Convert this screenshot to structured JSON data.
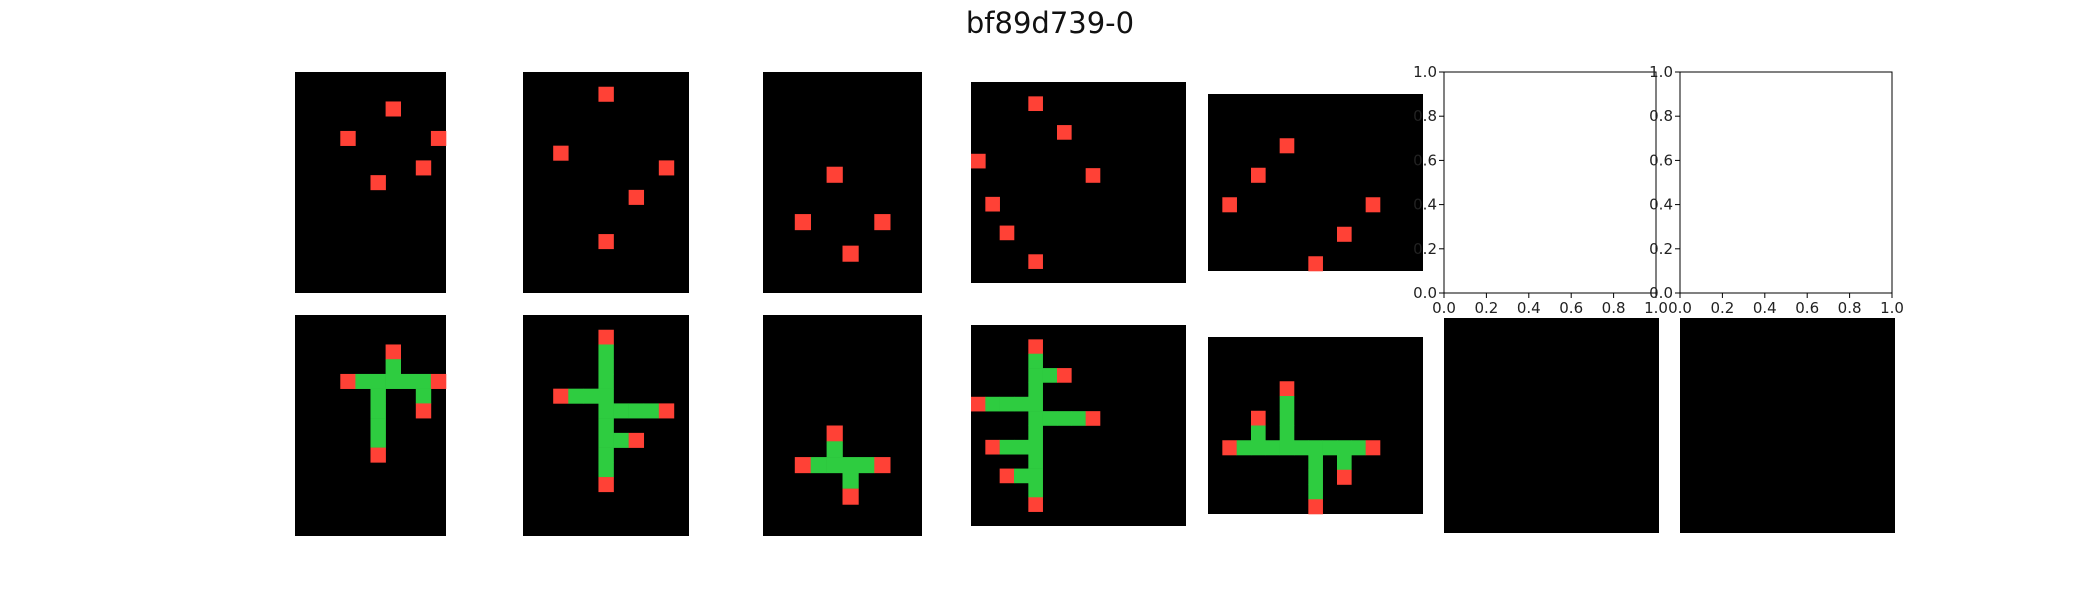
{
  "title": "bf89d739-0",
  "colors": {
    "background": "#000000",
    "red": "#ff4136",
    "green": "#2ecc40"
  },
  "panels": [
    {
      "id": "pair-1-input",
      "rows": 15,
      "cols": 10,
      "cells": [
        {
          "r": 2,
          "c": 6,
          "v": "red"
        },
        {
          "r": 4,
          "c": 3,
          "v": "red"
        },
        {
          "r": 4,
          "c": 9,
          "v": "red"
        },
        {
          "r": 6,
          "c": 8,
          "v": "red"
        },
        {
          "r": 7,
          "c": 5,
          "v": "red"
        }
      ]
    },
    {
      "id": "pair-2-input",
      "rows": 15,
      "cols": 11,
      "cells": [
        {
          "r": 1,
          "c": 5,
          "v": "red"
        },
        {
          "r": 5,
          "c": 2,
          "v": "red"
        },
        {
          "r": 6,
          "c": 9,
          "v": "red"
        },
        {
          "r": 8,
          "c": 7,
          "v": "red"
        },
        {
          "r": 11,
          "c": 5,
          "v": "red"
        }
      ]
    },
    {
      "id": "pair-3-input",
      "rows": 14,
      "cols": 10,
      "cells": [
        {
          "r": 6,
          "c": 4,
          "v": "red"
        },
        {
          "r": 9,
          "c": 2,
          "v": "red"
        },
        {
          "r": 9,
          "c": 7,
          "v": "red"
        },
        {
          "r": 11,
          "c": 5,
          "v": "red"
        }
      ]
    },
    {
      "id": "pair-4-input",
      "rows": 14,
      "cols": 15,
      "cells": [
        {
          "r": 1,
          "c": 4,
          "v": "red"
        },
        {
          "r": 3,
          "c": 6,
          "v": "red"
        },
        {
          "r": 5,
          "c": 0,
          "v": "red"
        },
        {
          "r": 6,
          "c": 8,
          "v": "red"
        },
        {
          "r": 8,
          "c": 1,
          "v": "red"
        },
        {
          "r": 10,
          "c": 2,
          "v": "red"
        },
        {
          "r": 12,
          "c": 4,
          "v": "red"
        }
      ]
    },
    {
      "id": "pair-5-input",
      "rows": 12,
      "cols": 15,
      "cells": [
        {
          "r": 3,
          "c": 5,
          "v": "red"
        },
        {
          "r": 5,
          "c": 3,
          "v": "red"
        },
        {
          "r": 7,
          "c": 1,
          "v": "red"
        },
        {
          "r": 7,
          "c": 11,
          "v": "red"
        },
        {
          "r": 9,
          "c": 9,
          "v": "red"
        },
        {
          "r": 11,
          "c": 7,
          "v": "red"
        }
      ]
    },
    {
      "id": "pair-1-output",
      "rows": 15,
      "cols": 10,
      "cells": [
        {
          "r": 2,
          "c": 6,
          "v": "red"
        },
        {
          "r": 3,
          "c": 6,
          "v": "green"
        },
        {
          "r": 4,
          "c": 3,
          "v": "red"
        },
        {
          "r": 4,
          "c": 4,
          "v": "green"
        },
        {
          "r": 4,
          "c": 5,
          "v": "green"
        },
        {
          "r": 4,
          "c": 6,
          "v": "green"
        },
        {
          "r": 4,
          "c": 7,
          "v": "green"
        },
        {
          "r": 4,
          "c": 8,
          "v": "green"
        },
        {
          "r": 4,
          "c": 9,
          "v": "red"
        },
        {
          "r": 5,
          "c": 5,
          "v": "green"
        },
        {
          "r": 5,
          "c": 8,
          "v": "green"
        },
        {
          "r": 6,
          "c": 5,
          "v": "green"
        },
        {
          "r": 6,
          "c": 8,
          "v": "red"
        },
        {
          "r": 7,
          "c": 5,
          "v": "green"
        },
        {
          "r": 8,
          "c": 5,
          "v": "green"
        },
        {
          "r": 9,
          "c": 5,
          "v": "red"
        }
      ]
    },
    {
      "id": "pair-2-output",
      "rows": 15,
      "cols": 11,
      "cells": [
        {
          "r": 1,
          "c": 5,
          "v": "red"
        },
        {
          "r": 2,
          "c": 5,
          "v": "green"
        },
        {
          "r": 3,
          "c": 5,
          "v": "green"
        },
        {
          "r": 4,
          "c": 5,
          "v": "green"
        },
        {
          "r": 5,
          "c": 2,
          "v": "red"
        },
        {
          "r": 5,
          "c": 3,
          "v": "green"
        },
        {
          "r": 5,
          "c": 4,
          "v": "green"
        },
        {
          "r": 5,
          "c": 5,
          "v": "green"
        },
        {
          "r": 6,
          "c": 5,
          "v": "green"
        },
        {
          "r": 6,
          "c": 6,
          "v": "green"
        },
        {
          "r": 6,
          "c": 7,
          "v": "green"
        },
        {
          "r": 6,
          "c": 8,
          "v": "green"
        },
        {
          "r": 6,
          "c": 9,
          "v": "red"
        },
        {
          "r": 7,
          "c": 5,
          "v": "green"
        },
        {
          "r": 8,
          "c": 5,
          "v": "green"
        },
        {
          "r": 8,
          "c": 6,
          "v": "green"
        },
        {
          "r": 8,
          "c": 7,
          "v": "red"
        },
        {
          "r": 9,
          "c": 5,
          "v": "green"
        },
        {
          "r": 10,
          "c": 5,
          "v": "green"
        },
        {
          "r": 11,
          "c": 5,
          "v": "red"
        }
      ]
    },
    {
      "id": "pair-3-output",
      "rows": 14,
      "cols": 10,
      "cells": [
        {
          "r": 7,
          "c": 4,
          "v": "red"
        },
        {
          "r": 8,
          "c": 4,
          "v": "green"
        },
        {
          "r": 9,
          "c": 2,
          "v": "red"
        },
        {
          "r": 9,
          "c": 3,
          "v": "green"
        },
        {
          "r": 9,
          "c": 4,
          "v": "green"
        },
        {
          "r": 9,
          "c": 5,
          "v": "green"
        },
        {
          "r": 9,
          "c": 6,
          "v": "green"
        },
        {
          "r": 9,
          "c": 7,
          "v": "red"
        },
        {
          "r": 10,
          "c": 5,
          "v": "green"
        },
        {
          "r": 11,
          "c": 5,
          "v": "red"
        }
      ]
    },
    {
      "id": "pair-4-output",
      "rows": 14,
      "cols": 15,
      "cells": [
        {
          "r": 1,
          "c": 4,
          "v": "red"
        },
        {
          "r": 2,
          "c": 4,
          "v": "green"
        },
        {
          "r": 3,
          "c": 4,
          "v": "green"
        },
        {
          "r": 3,
          "c": 5,
          "v": "green"
        },
        {
          "r": 3,
          "c": 6,
          "v": "red"
        },
        {
          "r": 4,
          "c": 4,
          "v": "green"
        },
        {
          "r": 5,
          "c": 0,
          "v": "red"
        },
        {
          "r": 5,
          "c": 1,
          "v": "green"
        },
        {
          "r": 5,
          "c": 2,
          "v": "green"
        },
        {
          "r": 5,
          "c": 3,
          "v": "green"
        },
        {
          "r": 5,
          "c": 4,
          "v": "green"
        },
        {
          "r": 6,
          "c": 4,
          "v": "green"
        },
        {
          "r": 6,
          "c": 5,
          "v": "green"
        },
        {
          "r": 6,
          "c": 6,
          "v": "green"
        },
        {
          "r": 6,
          "c": 7,
          "v": "green"
        },
        {
          "r": 6,
          "c": 8,
          "v": "red"
        },
        {
          "r": 7,
          "c": 4,
          "v": "green"
        },
        {
          "r": 8,
          "c": 1,
          "v": "red"
        },
        {
          "r": 8,
          "c": 2,
          "v": "green"
        },
        {
          "r": 8,
          "c": 3,
          "v": "green"
        },
        {
          "r": 8,
          "c": 4,
          "v": "green"
        },
        {
          "r": 9,
          "c": 4,
          "v": "green"
        },
        {
          "r": 10,
          "c": 2,
          "v": "red"
        },
        {
          "r": 10,
          "c": 3,
          "v": "green"
        },
        {
          "r": 10,
          "c": 4,
          "v": "green"
        },
        {
          "r": 11,
          "c": 4,
          "v": "green"
        },
        {
          "r": 12,
          "c": 4,
          "v": "red"
        }
      ]
    },
    {
      "id": "pair-5-output",
      "rows": 12,
      "cols": 15,
      "cells": [
        {
          "r": 3,
          "c": 5,
          "v": "red"
        },
        {
          "r": 4,
          "c": 5,
          "v": "green"
        },
        {
          "r": 5,
          "c": 3,
          "v": "red"
        },
        {
          "r": 5,
          "c": 5,
          "v": "green"
        },
        {
          "r": 6,
          "c": 3,
          "v": "green"
        },
        {
          "r": 6,
          "c": 5,
          "v": "green"
        },
        {
          "r": 7,
          "c": 1,
          "v": "red"
        },
        {
          "r": 7,
          "c": 2,
          "v": "green"
        },
        {
          "r": 7,
          "c": 3,
          "v": "green"
        },
        {
          "r": 7,
          "c": 4,
          "v": "green"
        },
        {
          "r": 7,
          "c": 5,
          "v": "green"
        },
        {
          "r": 7,
          "c": 6,
          "v": "green"
        },
        {
          "r": 7,
          "c": 7,
          "v": "green"
        },
        {
          "r": 7,
          "c": 8,
          "v": "green"
        },
        {
          "r": 7,
          "c": 9,
          "v": "green"
        },
        {
          "r": 7,
          "c": 10,
          "v": "green"
        },
        {
          "r": 7,
          "c": 11,
          "v": "red"
        },
        {
          "r": 8,
          "c": 7,
          "v": "green"
        },
        {
          "r": 8,
          "c": 9,
          "v": "green"
        },
        {
          "r": 9,
          "c": 7,
          "v": "green"
        },
        {
          "r": 9,
          "c": 9,
          "v": "red"
        },
        {
          "r": 10,
          "c": 7,
          "v": "green"
        },
        {
          "r": 11,
          "c": 7,
          "v": "red"
        }
      ]
    },
    {
      "id": "test-output-1",
      "rows": 10,
      "cols": 10,
      "cells": []
    },
    {
      "id": "test-output-2",
      "rows": 10,
      "cols": 10,
      "cells": []
    }
  ],
  "empty_axes": [
    {
      "id": "test-input-1",
      "xticks": [
        "0.0",
        "0.2",
        "0.4",
        "0.6",
        "0.8",
        "1.0"
      ],
      "yticks": [
        "0.0",
        "0.2",
        "0.4",
        "0.6",
        "0.8",
        "1.0"
      ]
    },
    {
      "id": "test-input-2",
      "xticks": [
        "0.0",
        "0.2",
        "0.4",
        "0.6",
        "0.8",
        "1.0"
      ],
      "yticks": [
        "0.0",
        "0.2",
        "0.4",
        "0.6",
        "0.8",
        "1.0"
      ]
    }
  ]
}
